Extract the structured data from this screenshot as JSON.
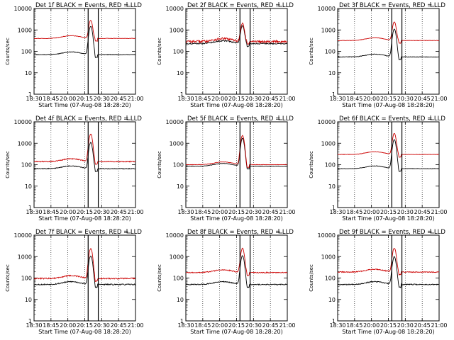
{
  "colors": {
    "events": "#000000",
    "lld": "#cc0000",
    "background": "#ffffff"
  },
  "panel_titles": [
    "Det 1f BLACK = Events, RED = LLD",
    "Det 2f BLACK = Events, RED = LLD",
    "Det 3f BLACK = Events, RED = LLD",
    "Det 4f BLACK = Events, RED = LLD",
    "Det 5f BLACK = Events, RED = LLD",
    "Det 6f BLACK = Events, RED = LLD",
    "Det 7f BLACK = Events, RED = LLD",
    "Det 8f BLACK = Events, RED = LLD",
    "Det 9f BLACK = Events, RED = LLD"
  ],
  "ylabel": "Counts/sec",
  "xlabel": "Start Time (07-Aug-08 18:28:20)",
  "x_ticks": [
    "18:30",
    "18:45",
    "20:00",
    "20:15",
    "20:30",
    "20:45",
    "21:00"
  ],
  "y_ticks": [
    "1",
    "10",
    "100",
    "1000",
    "10000"
  ],
  "chart_data": {
    "type": "line",
    "y_scale": "log",
    "ylim": [
      1,
      10000
    ],
    "grid": "vertical dotted lines at x ticks",
    "x_ticks": [
      "18:30",
      "18:45",
      "20:00",
      "20:15",
      "20:30",
      "20:45",
      "21:00"
    ],
    "marker_positions": [
      "20:15",
      "20:30"
    ],
    "panels": [
      {
        "detector": "1f",
        "events_base": 70,
        "lld_base": 400,
        "events_peak": 1500,
        "lld_peak": 2800,
        "events_noise": 0.03,
        "lld_noise": 0.02
      },
      {
        "detector": "2f",
        "events_base": 230,
        "lld_base": 290,
        "events_peak": 1600,
        "lld_peak": 2000,
        "events_noise": 0.06,
        "lld_noise": 0.12
      },
      {
        "detector": "3f",
        "events_base": 55,
        "lld_base": 320,
        "events_peak": 1100,
        "lld_peak": 2400,
        "events_noise": 0.03,
        "lld_noise": 0.02
      },
      {
        "detector": "4f",
        "events_base": 65,
        "lld_base": 140,
        "events_peak": 1100,
        "lld_peak": 2700,
        "events_noise": 0.04,
        "lld_noise": 0.05
      },
      {
        "detector": "5f",
        "events_base": 85,
        "lld_base": 100,
        "events_peak": 1700,
        "lld_peak": 2300,
        "events_noise": 0.02,
        "lld_noise": 0.02
      },
      {
        "detector": "6f",
        "events_base": 65,
        "lld_base": 300,
        "events_peak": 1500,
        "lld_peak": 2900,
        "events_noise": 0.02,
        "lld_noise": 0.02
      },
      {
        "detector": "7f",
        "events_base": 50,
        "lld_base": 95,
        "events_peak": 1100,
        "lld_peak": 2400,
        "events_noise": 0.06,
        "lld_noise": 0.07
      },
      {
        "detector": "8f",
        "events_base": 50,
        "lld_base": 180,
        "events_peak": 1100,
        "lld_peak": 2400,
        "events_noise": 0.05,
        "lld_noise": 0.05
      },
      {
        "detector": "9f",
        "events_base": 50,
        "lld_base": 190,
        "events_peak": 1000,
        "lld_peak": 2500,
        "events_noise": 0.05,
        "lld_noise": 0.05
      }
    ]
  }
}
